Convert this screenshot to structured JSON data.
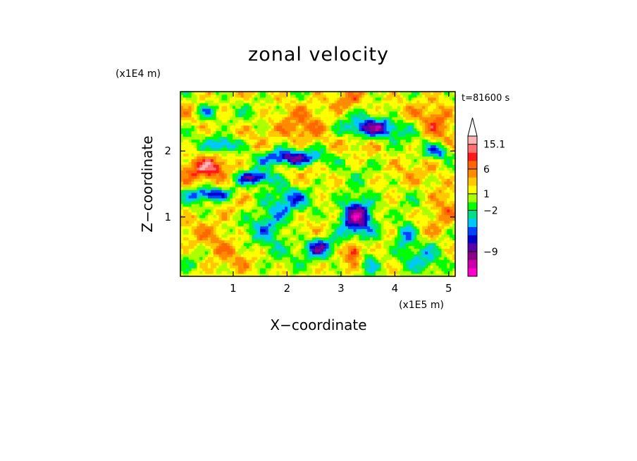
{
  "chart_data": {
    "type": "heatmap",
    "title": "zonal velocity",
    "xlabel": "X−coordinate",
    "ylabel": "Z−coordinate",
    "x_unit": "(x1E5 m)",
    "y_unit": "(x1E4 m)",
    "time_label": "t=81600 s",
    "xlim": [
      0.02,
      5.12
    ],
    "ylim": [
      0.1,
      2.9
    ],
    "x_ticks": [
      {
        "value": 1,
        "label": "1"
      },
      {
        "value": 2,
        "label": "2"
      },
      {
        "value": 3,
        "label": "3"
      },
      {
        "value": 4,
        "label": "4"
      },
      {
        "value": 5,
        "label": "5"
      }
    ],
    "y_ticks": [
      {
        "value": 1,
        "label": "1"
      },
      {
        "value": 2,
        "label": "2"
      }
    ],
    "colorbar": {
      "colors": [
        "#ff00cc",
        "#cc00aa",
        "#8a008a",
        "#5a00a8",
        "#0000c8",
        "#0044ff",
        "#00c8ff",
        "#00e08a",
        "#00ff00",
        "#aaff00",
        "#ffff00",
        "#ffc800",
        "#ff8c00",
        "#ff6600",
        "#ff1a1a",
        "#ff7070",
        "#ffb4b4"
      ],
      "labels": [
        {
          "label": "15.1",
          "boundary": 16
        },
        {
          "label": "6",
          "boundary": 13
        },
        {
          "label": "1",
          "boundary": 10
        },
        {
          "label": "−2",
          "boundary": 8
        },
        {
          "label": "−9",
          "boundary": 3
        }
      ],
      "arrow_color": "#ffffff"
    },
    "field": {
      "base_level": 10.3,
      "components": [
        {
          "x": 0.6,
          "z": 1.75,
          "sx": 0.45,
          "sz": 0.18,
          "amp": 4.5
        },
        {
          "x": 0.7,
          "z": 0.6,
          "sx": 0.5,
          "sz": 0.3,
          "amp": 2.0
        },
        {
          "x": 2.3,
          "z": 2.3,
          "sx": 0.5,
          "sz": 0.22,
          "amp": 3.0
        },
        {
          "x": 3.1,
          "z": 2.75,
          "sx": 0.3,
          "sz": 0.15,
          "amp": 3.0
        },
        {
          "x": 4.8,
          "z": 2.4,
          "sx": 0.3,
          "sz": 0.3,
          "amp": 3.0
        },
        {
          "x": 4.9,
          "z": 1.1,
          "sx": 0.3,
          "sz": 0.4,
          "amp": 2.0
        },
        {
          "x": 0.3,
          "z": 0.5,
          "sx": 0.3,
          "sz": 0.2,
          "amp": -1.0
        },
        {
          "x": 0.5,
          "z": 2.6,
          "sx": 0.2,
          "sz": 0.12,
          "amp": -4.0
        },
        {
          "x": 0.85,
          "z": 2.1,
          "sx": 0.3,
          "sz": 0.12,
          "amp": -6.0
        },
        {
          "x": 0.6,
          "z": 1.35,
          "sx": 0.4,
          "sz": 0.1,
          "amp": -6.0
        },
        {
          "x": 2.1,
          "z": 1.9,
          "sx": 0.6,
          "sz": 0.12,
          "amp": -7.0
        },
        {
          "x": 1.4,
          "z": 1.6,
          "sx": 0.35,
          "sz": 0.1,
          "amp": -6.0
        },
        {
          "x": 3.6,
          "z": 2.35,
          "sx": 0.55,
          "sz": 0.15,
          "amp": -7.0
        },
        {
          "x": 4.8,
          "z": 2.0,
          "sx": 0.25,
          "sz": 0.12,
          "amp": -5.0
        },
        {
          "x": 3.3,
          "z": 1.05,
          "sx": 0.3,
          "sz": 0.3,
          "amp": -8.0
        },
        {
          "x": 2.6,
          "z": 0.55,
          "sx": 0.3,
          "sz": 0.15,
          "amp": -6.0
        },
        {
          "x": 4.2,
          "z": 0.75,
          "sx": 0.2,
          "sz": 0.2,
          "amp": -5.0
        },
        {
          "x": 1.7,
          "z": 0.9,
          "sx": 0.4,
          "sz": 0.5,
          "amp": -3.5
        },
        {
          "x": 2.1,
          "z": 1.3,
          "sx": 0.3,
          "sz": 0.2,
          "amp": -3.0
        },
        {
          "x": 4.6,
          "z": 0.4,
          "sx": 0.4,
          "sz": 0.3,
          "amp": -2.5
        },
        {
          "x": 3.25,
          "z": 0.5,
          "sx": 0.15,
          "sz": 0.15,
          "amp": 5.0
        },
        {
          "x": 3.5,
          "z": 0.3,
          "sx": 0.2,
          "sz": 0.2,
          "amp": -4.0
        }
      ],
      "waves": [
        {
          "kx": 9.0,
          "kz": 12.0,
          "amp": 1.6,
          "phase": 0.3
        },
        {
          "kx": 3.0,
          "kz": 7.0,
          "amp": 1.2,
          "phase": 1.1
        },
        {
          "kx": 22.0,
          "kz": 30.0,
          "amp": 0.8,
          "phase": 2.0
        }
      ]
    }
  }
}
